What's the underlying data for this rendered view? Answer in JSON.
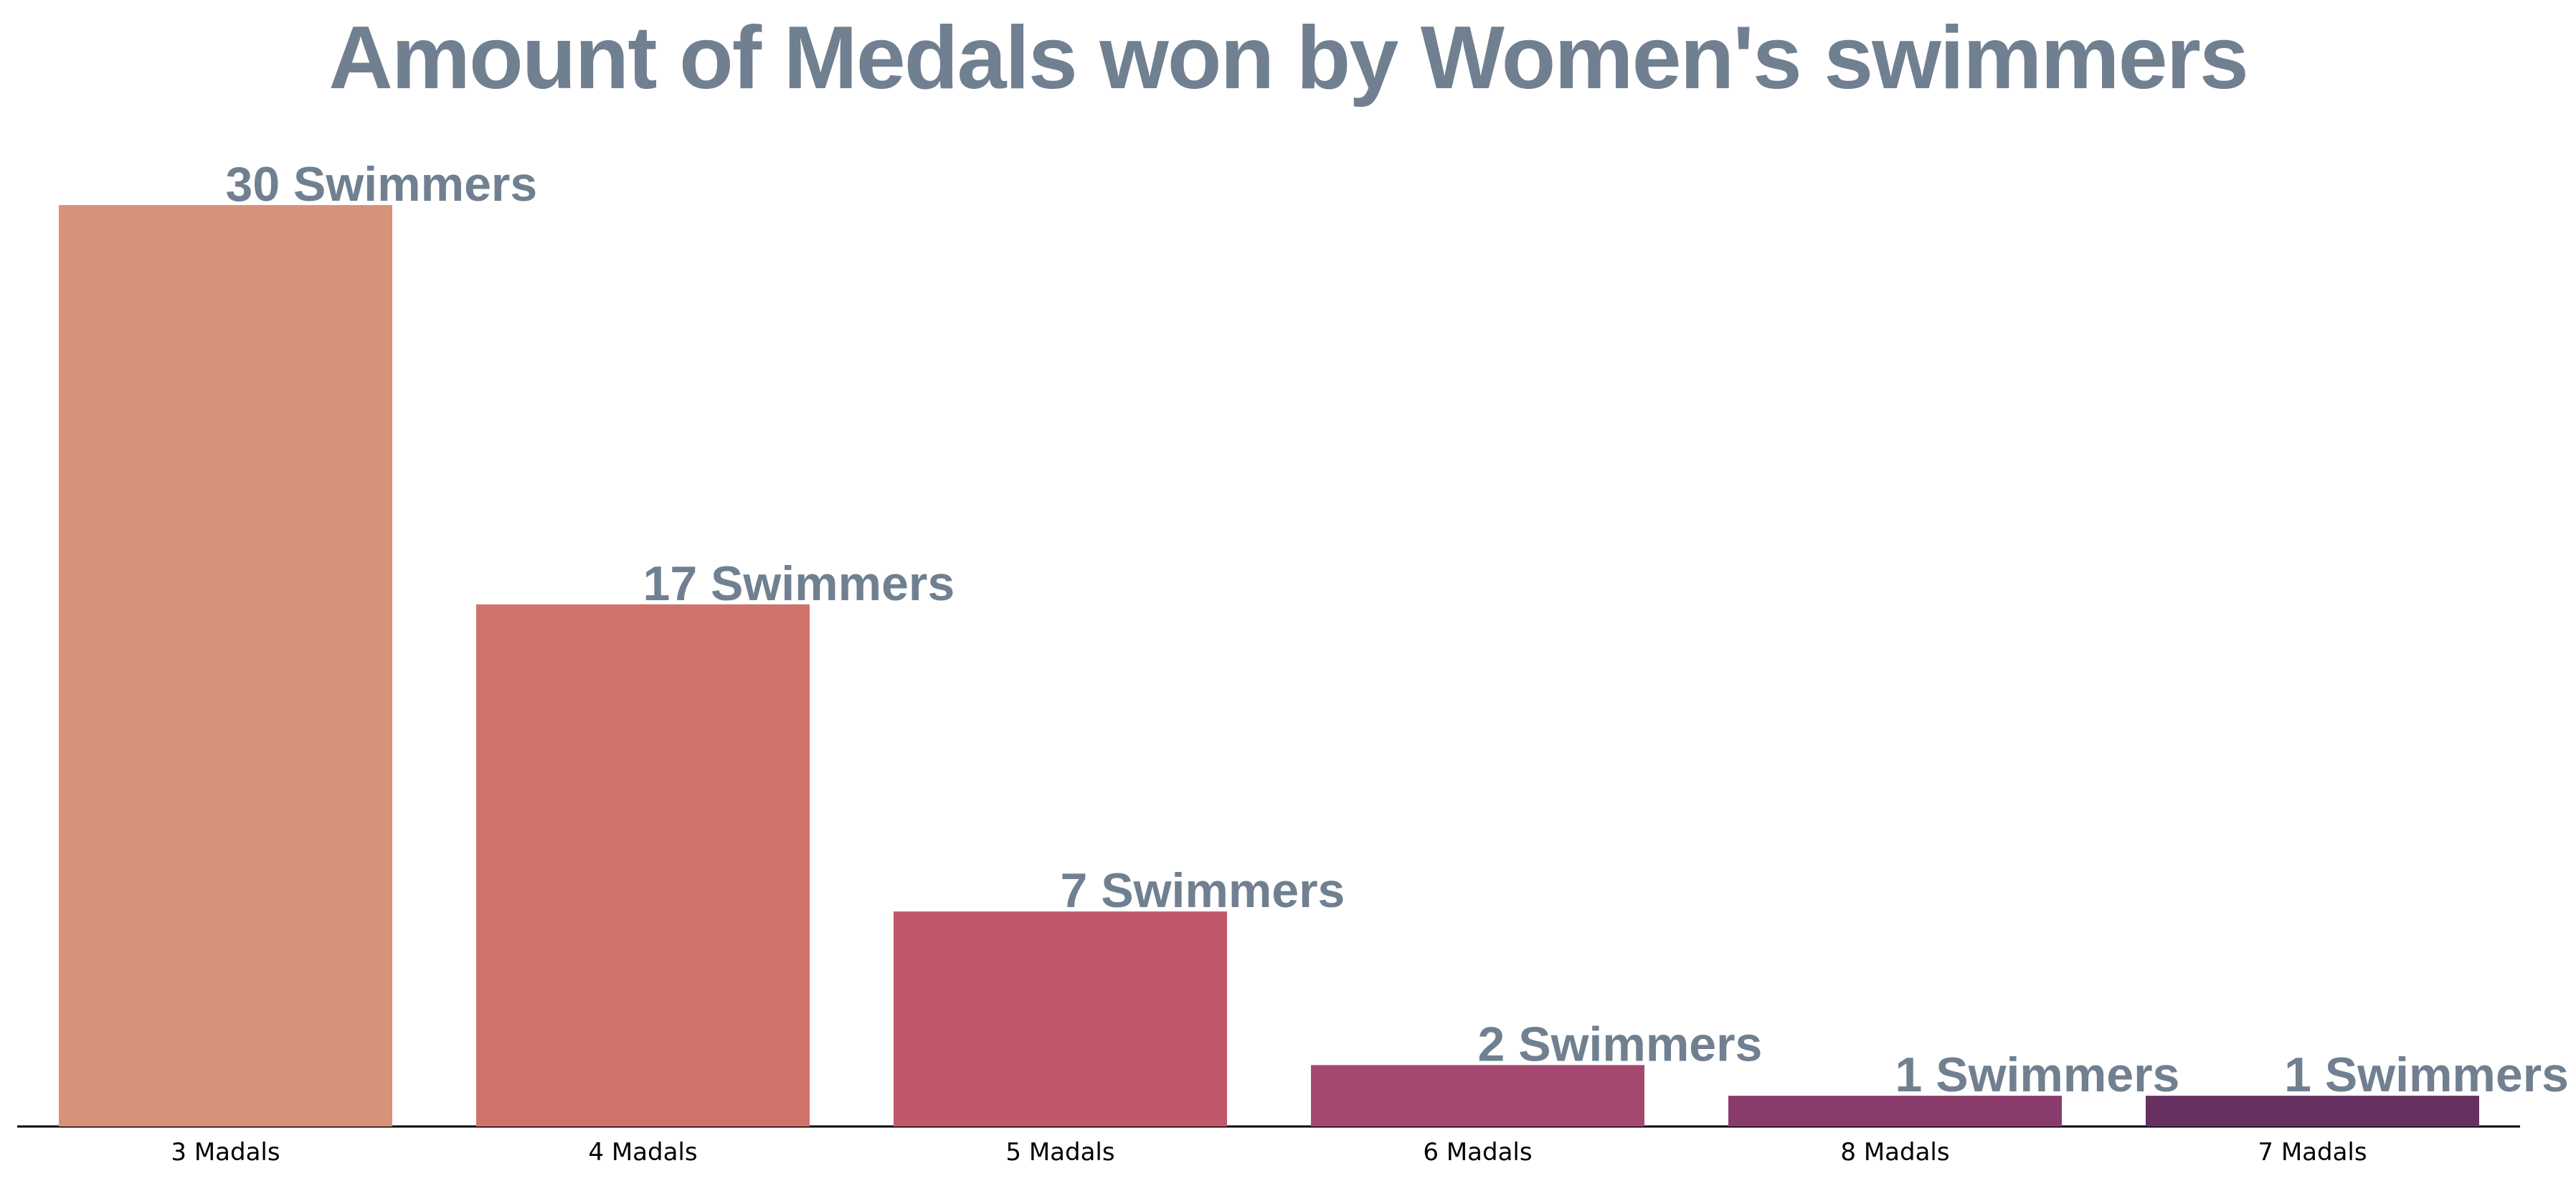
{
  "chart_data": {
    "type": "bar",
    "title": "Amount of Medals won by Women's swimmers",
    "xlabel": "",
    "ylabel": "",
    "categories": [
      "3 Madals",
      "4 Madals",
      "5 Madals",
      "6 Madals",
      "8 Madals",
      "7 Madals"
    ],
    "values": [
      30,
      17,
      7,
      2,
      1,
      1
    ],
    "data_labels": [
      "30 Swimmers",
      "17 Swimmers",
      "7 Swimmers",
      "2 Swimmers",
      "1 Swimmers",
      "1 Swimmers"
    ],
    "colors": [
      "#d9927a",
      "#d0736b",
      "#bf596a",
      "#a4486f",
      "#893c6c",
      "#663160"
    ],
    "label_color": "#708090",
    "ylim": [
      0,
      30
    ],
    "grid": false,
    "legend": "none"
  }
}
